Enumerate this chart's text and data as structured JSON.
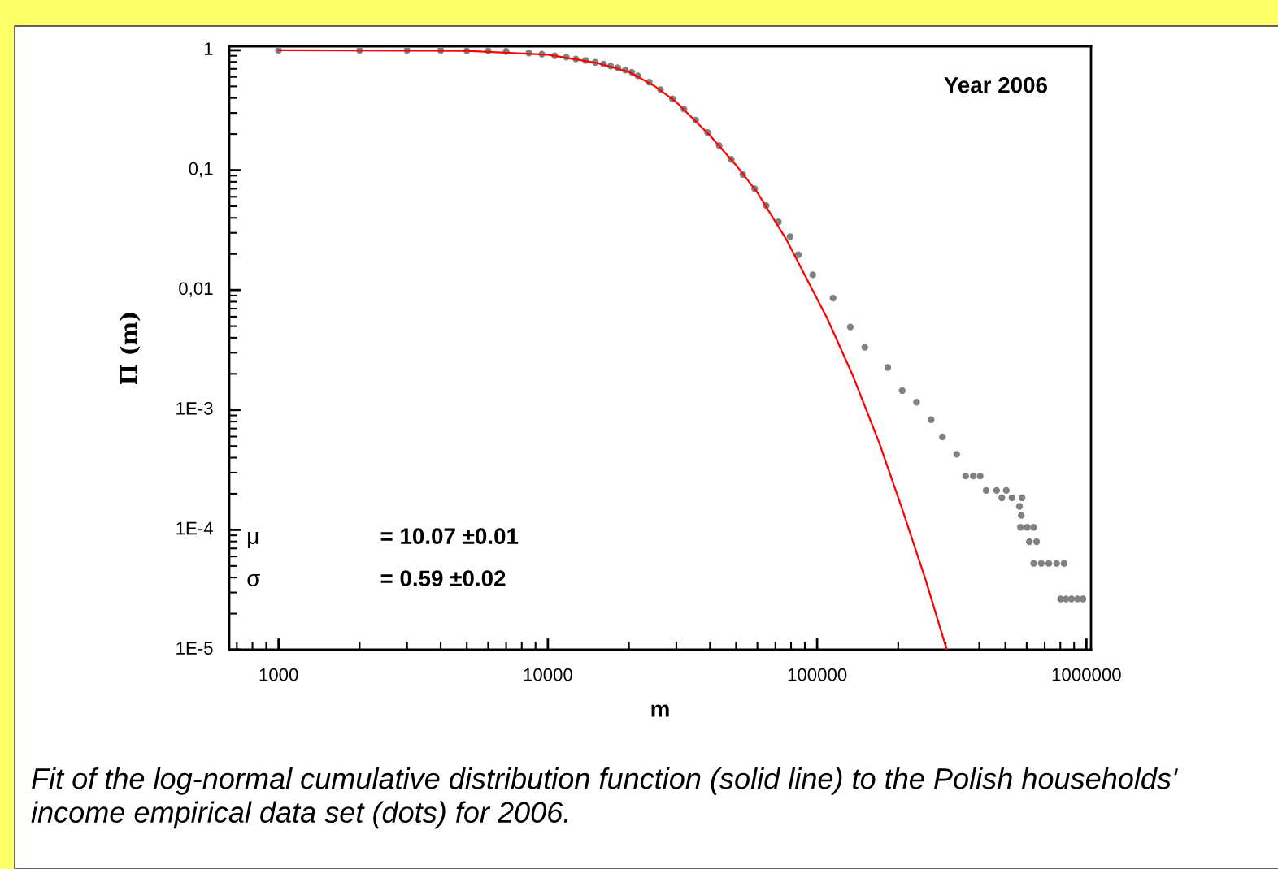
{
  "chart_data": {
    "type": "scatter",
    "xlabel": "m",
    "ylabel": "Π (m)",
    "log": "xy",
    "xlim": [
      656,
      1040000
    ],
    "ylim": [
      1e-05,
      1.08
    ],
    "xticks": [
      1000,
      10000,
      100000,
      1000000
    ],
    "yticks": [
      {
        "value": 1,
        "label": "1"
      },
      {
        "value": 0.1,
        "label": "0,1"
      },
      {
        "value": 0.01,
        "label": "0,01"
      },
      {
        "value": 0.001,
        "label": "1E-3"
      },
      {
        "value": 0.0001,
        "label": "1E-4"
      },
      {
        "value": 1e-05,
        "label": "1E-5"
      }
    ],
    "grid": false,
    "series": [
      {
        "color": "#808080",
        "marker": "circle",
        "x": [
          1000,
          2000,
          3000,
          4000,
          5000,
          6000,
          7000,
          8500,
          9500,
          10600,
          11700,
          12700,
          13800,
          15000,
          16100,
          17100,
          18200,
          19400,
          20500,
          21600,
          23800,
          26200,
          29000,
          32000,
          35400,
          39200,
          43300,
          48000,
          53000,
          58600,
          64700,
          71800,
          79300,
          85100,
          96300,
          114600,
          132800,
          150300,
          182900,
          207000,
          234000,
          265000,
          292000,
          330000,
          356000,
          380000,
          403000,
          424000,
          464000,
          504000,
          485000,
          529000,
          577000,
          564000,
          573000,
          569000,
          603000,
          637000,
          614000,
          653000,
          637000,
          680000,
          725000,
          775000,
          826000,
          802000,
          840000,
          880000,
          925000,
          970000
        ],
        "values": [
          1.0,
          1.0,
          1.0,
          1.0,
          0.99,
          0.99,
          0.98,
          0.95,
          0.93,
          0.9,
          0.876,
          0.847,
          0.823,
          0.794,
          0.767,
          0.74,
          0.715,
          0.684,
          0.657,
          0.612,
          0.542,
          0.47,
          0.394,
          0.324,
          0.262,
          0.206,
          0.16,
          0.123,
          0.092,
          0.07,
          0.0507,
          0.037,
          0.0279,
          0.0197,
          0.0134,
          0.00857,
          0.00492,
          0.00333,
          0.00226,
          0.00145,
          0.00116,
          0.00083,
          0.000596,
          0.000427,
          0.000281,
          0.000281,
          0.000281,
          0.000213,
          0.000213,
          0.000213,
          0.000185,
          0.000185,
          0.000185,
          0.000157,
          0.000132,
          0.000105,
          0.000105,
          0.000105,
          7.96e-05,
          7.96e-05,
          5.25e-05,
          5.25e-05,
          5.25e-05,
          5.25e-05,
          5.25e-05,
          2.65e-05,
          2.65e-05,
          2.65e-05,
          2.65e-05,
          2.65e-05
        ]
      },
      {
        "type": "line",
        "color": "#ff0000",
        "line_style": "solid",
        "marker": "none",
        "x": [
          1000,
          5000,
          10000,
          15000,
          20000,
          25000,
          30000,
          40000,
          50000,
          60000,
          77100,
          109000,
          136000,
          170000,
          207000,
          252000,
          303000
        ],
        "values": [
          1.0,
          0.99,
          0.92,
          0.79,
          0.66,
          0.5,
          0.37,
          0.195,
          0.11,
          0.065,
          0.0261,
          0.00581,
          0.00191,
          0.000533,
          0.000149,
          3.92e-05,
          1e-05
        ]
      }
    ],
    "annotations": [
      "Year 2006",
      "μ",
      "= 10.07 ±0.01",
      "σ",
      "= 0.59 ±0.02",
      "Fit of the log-normal cumulative distribution function (solid line) to the Polish households' income empirical data set (dots) for 2006."
    ]
  }
}
